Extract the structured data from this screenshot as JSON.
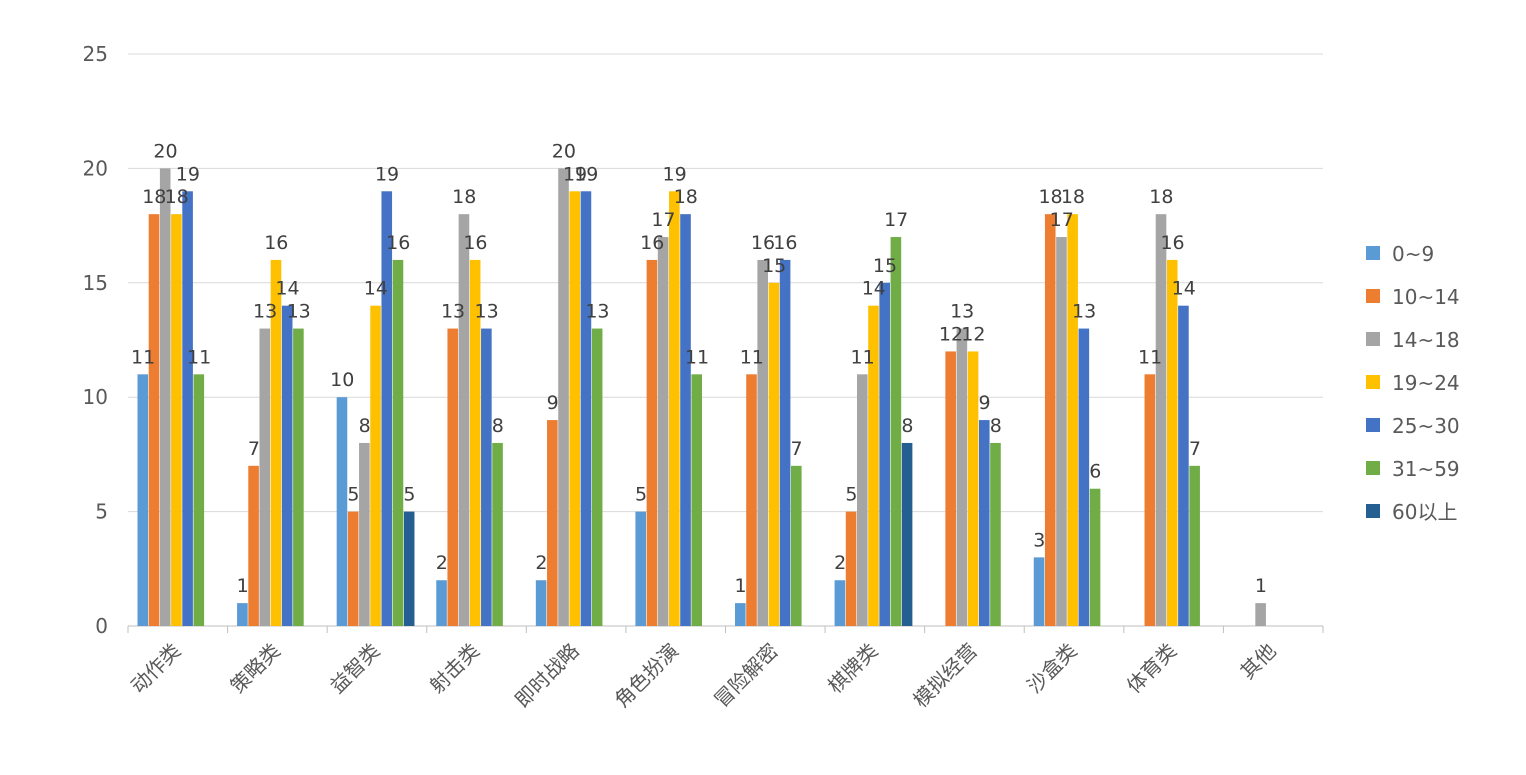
{
  "chart_data": {
    "type": "bar",
    "title": "",
    "xlabel": "",
    "ylabel": "",
    "ylim": [
      0,
      25
    ],
    "yticks": [
      0,
      5,
      10,
      15,
      20,
      25
    ],
    "grid": true,
    "legend_position": "right",
    "categories": [
      "动作类",
      "策略类",
      "益智类",
      "射击类",
      "即时战略",
      "角色扮演",
      "冒险解密",
      "棋牌类",
      "模拟经营",
      "沙盒类",
      "体育类",
      "其他"
    ],
    "series": [
      {
        "name": "0~9",
        "color": "#5b9bd5",
        "values": [
          11,
          1,
          10,
          2,
          2,
          5,
          1,
          2,
          null,
          3,
          null,
          null
        ]
      },
      {
        "name": "10~14",
        "color": "#ed7d31",
        "values": [
          18,
          7,
          5,
          13,
          9,
          16,
          11,
          5,
          12,
          18,
          11,
          null
        ]
      },
      {
        "name": "14~18",
        "color": "#a5a5a5",
        "values": [
          20,
          13,
          8,
          18,
          20,
          17,
          16,
          11,
          13,
          17,
          18,
          1
        ]
      },
      {
        "name": "19~24",
        "color": "#ffc000",
        "values": [
          18,
          16,
          14,
          16,
          19,
          19,
          15,
          14,
          12,
          18,
          16,
          null
        ]
      },
      {
        "name": "25~30",
        "color": "#4472c4",
        "values": [
          19,
          14,
          19,
          13,
          19,
          18,
          16,
          15,
          9,
          13,
          14,
          null
        ]
      },
      {
        "name": "31~59",
        "color": "#70ad47",
        "values": [
          11,
          13,
          16,
          8,
          13,
          11,
          7,
          17,
          8,
          6,
          7,
          null
        ]
      },
      {
        "name": "60以上",
        "color": "#255e91",
        "values": [
          null,
          null,
          5,
          null,
          null,
          null,
          null,
          8,
          null,
          null,
          null,
          null
        ]
      }
    ]
  }
}
